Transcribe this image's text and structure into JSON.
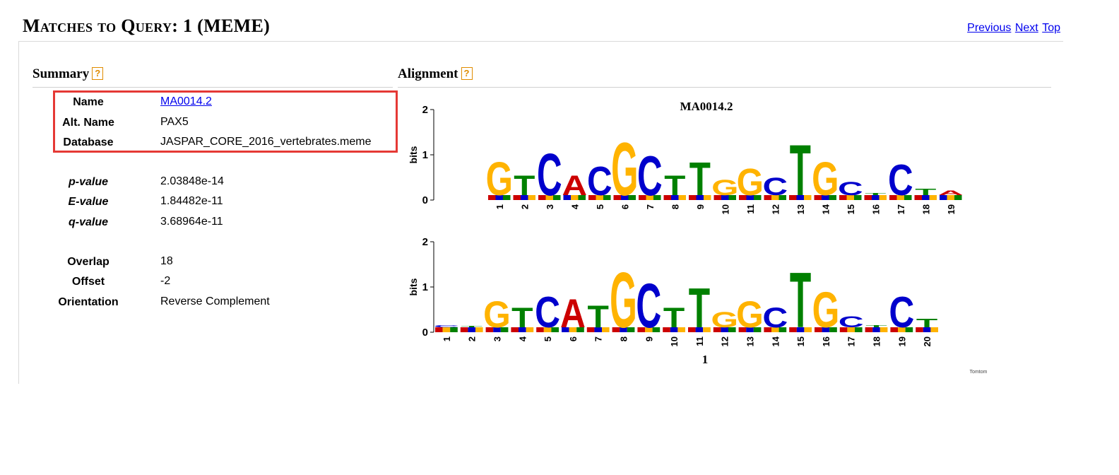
{
  "header": {
    "title": "Matches to Query: 1 (MEME)",
    "nav": [
      "Previous",
      "Next",
      "Top"
    ]
  },
  "summary": {
    "heading": "Summary",
    "help": "?",
    "rows": [
      {
        "label": "Name",
        "value": "MA0014.2",
        "link": true
      },
      {
        "label": "Alt. Name",
        "value": "PAX5"
      },
      {
        "label": "Database",
        "value": "JASPAR_CORE_2016_vertebrates.meme"
      },
      {
        "label": "p-value",
        "value": "2.03848e-14"
      },
      {
        "label": "E-value",
        "value": "1.84482e-11"
      },
      {
        "label": "q-value",
        "value": "3.68964e-11"
      },
      {
        "label": "Overlap",
        "value": "18"
      },
      {
        "label": "Offset",
        "value": "-2"
      },
      {
        "label": "Orientation",
        "value": "Reverse Complement"
      }
    ]
  },
  "alignment": {
    "heading": "Alignment",
    "help": "?",
    "top_logo": {
      "title": "MA0014.2",
      "ylabel": "bits",
      "yticks": [
        "0",
        "1",
        "2"
      ],
      "positions": [
        "1",
        "2",
        "3",
        "4",
        "5",
        "6",
        "7",
        "8",
        "9",
        "10",
        "11",
        "12",
        "13",
        "14",
        "15",
        "16",
        "17",
        "18",
        "19"
      ],
      "letters": [
        {
          "main": "G",
          "height": 0.75
        },
        {
          "main": "T",
          "height": 0.45
        },
        {
          "main": "C",
          "height": 0.95
        },
        {
          "main": "A",
          "height": 0.45
        },
        {
          "main": "C",
          "height": 0.65
        },
        {
          "main": "G",
          "height": 1.2
        },
        {
          "main": "C",
          "height": 0.9
        },
        {
          "main": "T",
          "height": 0.45
        },
        {
          "main": "T",
          "height": 0.75
        },
        {
          "main": "G",
          "height": 0.35
        },
        {
          "main": "G",
          "height": 0.6
        },
        {
          "main": "C",
          "height": 0.4
        },
        {
          "main": "T",
          "height": 1.15
        },
        {
          "main": "G",
          "height": 0.75
        },
        {
          "main": "C",
          "height": 0.3
        },
        {
          "main": "T",
          "height": 0.05
        },
        {
          "main": "C",
          "height": 0.7
        },
        {
          "main": "T",
          "height": 0.15
        },
        {
          "main": "A",
          "height": 0.1
        }
      ]
    },
    "bottom_logo": {
      "ylabel": "bits",
      "yticks": [
        "0",
        "1",
        "2"
      ],
      "positions": [
        "1",
        "2",
        "3",
        "4",
        "5",
        "6",
        "7",
        "8",
        "9",
        "10",
        "11",
        "12",
        "13",
        "14",
        "15",
        "16",
        "17",
        "18",
        "19",
        "20"
      ],
      "letters": [
        {
          "main": "C",
          "height": 0.05
        },
        {
          "main": "T",
          "height": 0.03
        },
        {
          "main": "G",
          "height": 0.6
        },
        {
          "main": "T",
          "height": 0.45
        },
        {
          "main": "C",
          "height": 0.7
        },
        {
          "main": "A",
          "height": 0.65
        },
        {
          "main": "T",
          "height": 0.5
        },
        {
          "main": "G",
          "height": 1.25
        },
        {
          "main": "C",
          "height": 1.0
        },
        {
          "main": "T",
          "height": 0.45
        },
        {
          "main": "T",
          "height": 0.9
        },
        {
          "main": "G",
          "height": 0.35
        },
        {
          "main": "G",
          "height": 0.6
        },
        {
          "main": "C",
          "height": 0.45
        },
        {
          "main": "T",
          "height": 1.25
        },
        {
          "main": "G",
          "height": 0.8
        },
        {
          "main": "C",
          "height": 0.25
        },
        {
          "main": "T",
          "height": 0.05
        },
        {
          "main": "C",
          "height": 0.7
        },
        {
          "main": "T",
          "height": 0.2
        }
      ],
      "footer": "1",
      "credit": "Tomtom"
    },
    "colors": {
      "A": "#cc0000",
      "C": "#0000cc",
      "G": "#ffb300",
      "T": "#008000"
    }
  }
}
